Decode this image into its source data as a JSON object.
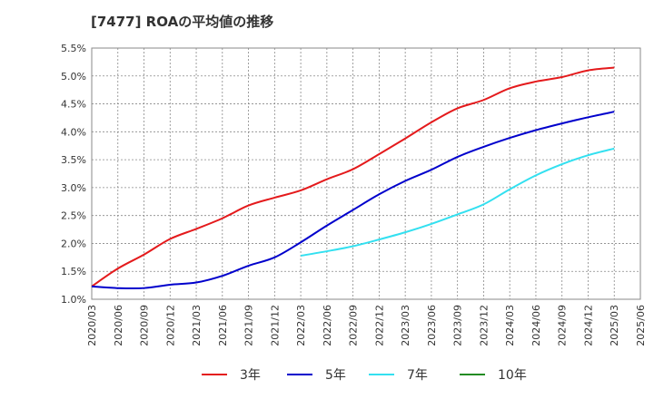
{
  "chart_data": {
    "type": "line",
    "title": "[7477]  ROAの平均値の推移",
    "xlabel": "",
    "ylabel": "",
    "ylim": [
      1.0,
      5.5
    ],
    "grid": true,
    "legend_position": "bottom",
    "y_ticks": [
      "1.0%",
      "1.5%",
      "2.0%",
      "2.5%",
      "3.0%",
      "3.5%",
      "4.0%",
      "4.5%",
      "5.0%",
      "5.5%"
    ],
    "x_ticks": [
      "2020/03",
      "2020/06",
      "2020/09",
      "2020/12",
      "2021/03",
      "2021/06",
      "2021/09",
      "2021/12",
      "2022/03",
      "2022/06",
      "2022/09",
      "2022/12",
      "2023/03",
      "2023/06",
      "2023/09",
      "2023/12",
      "2024/03",
      "2024/06",
      "2024/09",
      "2024/12",
      "2025/03",
      "2025/06"
    ],
    "x": [
      "2020/03",
      "2020/06",
      "2020/09",
      "2020/12",
      "2021/03",
      "2021/06",
      "2021/09",
      "2021/12",
      "2022/03",
      "2022/06",
      "2022/09",
      "2022/12",
      "2023/03",
      "2023/06",
      "2023/09",
      "2023/12",
      "2024/03",
      "2024/06",
      "2024/09",
      "2024/12",
      "2025/03"
    ],
    "series": [
      {
        "name": "3年",
        "color": "#e41a1c",
        "values": [
          1.23,
          1.55,
          1.8,
          2.08,
          2.26,
          2.45,
          2.68,
          2.82,
          2.95,
          3.15,
          3.33,
          3.6,
          3.88,
          4.17,
          4.42,
          4.57,
          4.78,
          4.9,
          4.98,
          5.1,
          5.15
        ]
      },
      {
        "name": "5年",
        "color": "#0000cc",
        "values": [
          1.23,
          1.2,
          1.2,
          1.26,
          1.3,
          1.42,
          1.6,
          1.75,
          2.02,
          2.32,
          2.6,
          2.88,
          3.12,
          3.32,
          3.55,
          3.73,
          3.89,
          4.03,
          4.15,
          4.26,
          4.36
        ]
      },
      {
        "name": "7年",
        "color": "#33e0f0",
        "values": [
          null,
          null,
          null,
          null,
          null,
          null,
          null,
          null,
          1.78,
          1.86,
          1.95,
          2.07,
          2.2,
          2.35,
          2.52,
          2.7,
          2.97,
          3.22,
          3.42,
          3.58,
          3.7
        ]
      },
      {
        "name": "10年",
        "color": "#228b22",
        "values": [
          null,
          null,
          null,
          null,
          null,
          null,
          null,
          null,
          null,
          null,
          null,
          null,
          null,
          null,
          null,
          null,
          null,
          null,
          null,
          null,
          null
        ]
      }
    ]
  }
}
